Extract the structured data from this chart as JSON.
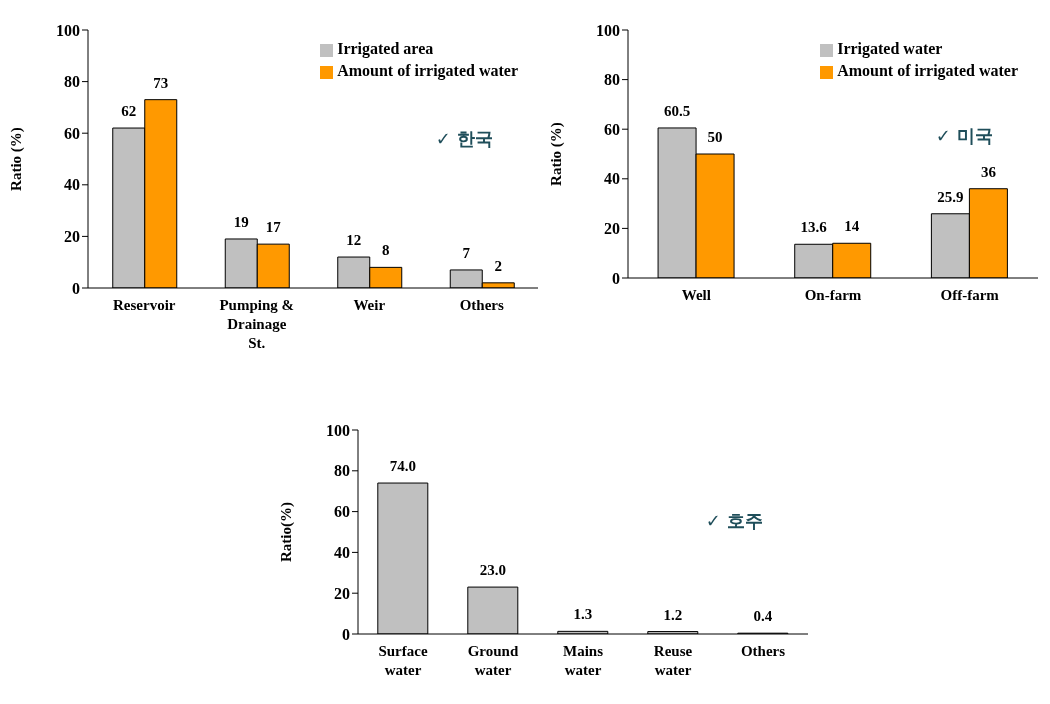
{
  "chart_data": [
    {
      "type": "bar",
      "ylabel": "Ratio (%)",
      "categories": [
        "Reservoir",
        "Pumping & Drainage St.",
        "Weir",
        "Others"
      ],
      "series": [
        {
          "name": "Irrigated area",
          "color": "#c0c0c0",
          "values": [
            62,
            19,
            12,
            7
          ]
        },
        {
          "name": "Amount of irrigated water",
          "color": "#ff9900",
          "values": [
            73,
            17,
            8,
            2
          ]
        }
      ],
      "ylim": [
        0,
        100
      ],
      "yticks": [
        0,
        20,
        40,
        60,
        80,
        100
      ],
      "data_labels": true,
      "legend": "top right",
      "annotations": [
        "✓ 한국"
      ]
    },
    {
      "type": "bar",
      "ylabel": "Ratio (%)",
      "categories": [
        "Well",
        "On-farm",
        "Off-farm"
      ],
      "series": [
        {
          "name": "Irrigated water",
          "color": "#c0c0c0",
          "values": [
            60.5,
            13.6,
            25.9
          ]
        },
        {
          "name": "Amount of irrigated water",
          "color": "#ff9900",
          "values": [
            50,
            14,
            36
          ]
        }
      ],
      "ylim": [
        0,
        100
      ],
      "yticks": [
        0,
        20,
        40,
        60,
        80,
        100
      ],
      "data_labels": true,
      "legend": "top right",
      "annotations": [
        "✓ 미국"
      ]
    },
    {
      "type": "bar",
      "ylabel": "Ratio(%)",
      "categories": [
        "Surface water",
        "Ground water",
        "Mains water",
        "Reuse water",
        "Others"
      ],
      "values": [
        74,
        23,
        1.3,
        1.2,
        0.4
      ],
      "color": "#c0c0c0",
      "value_labels": [
        "74.0",
        "23.0",
        "1.3",
        "1.2",
        "0.4"
      ],
      "ylim": [
        0,
        100
      ],
      "yticks": [
        0,
        20,
        40,
        60,
        80,
        100
      ],
      "annotations": [
        "✓ 호주"
      ]
    }
  ]
}
